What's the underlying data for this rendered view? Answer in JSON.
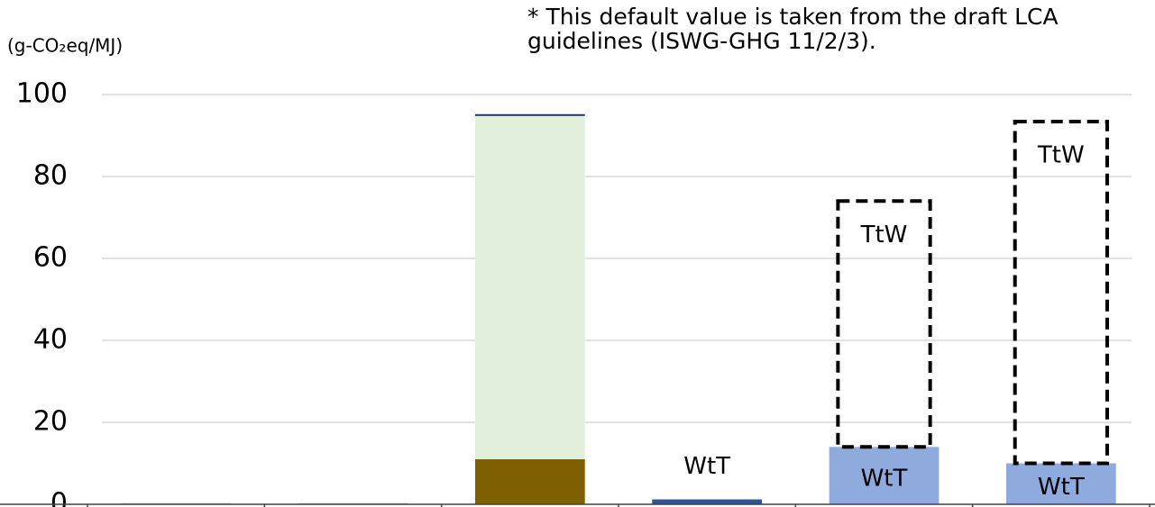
{
  "chart_data": {
    "type": "stacked_bar",
    "unit_label": "(g-CO₂eq/MJ)",
    "note": [
      "* This default value is taken from the draft LCA",
      "guidelines (ISWG-GHG 11/2/3)."
    ],
    "categories": [
      null,
      null,
      null,
      null,
      null,
      null
    ],
    "series": [
      {
        "name": "WtT",
        "values": [
          0.3,
          0.3,
          11,
          1.2,
          14,
          10
        ],
        "colors": [
          "#bfbfbf",
          "#bfbfbf",
          "#7f6000",
          "#2f5597",
          "#8faadc",
          "#8faadc"
        ],
        "annotated": [
          false,
          false,
          false,
          true,
          true,
          true
        ]
      },
      {
        "name": "TtW",
        "values": [
          null,
          null,
          84,
          null,
          60,
          83.4
        ],
        "colors": [
          null,
          null,
          "#e2efda",
          null,
          "none",
          "none"
        ],
        "styles": [
          null,
          null,
          "solid",
          null,
          "dashed",
          "dashed"
        ],
        "annotated": [
          false,
          false,
          false,
          false,
          true,
          true
        ]
      }
    ],
    "ylim": [
      0,
      100
    ],
    "yticks": [
      0,
      20,
      40,
      60,
      80,
      100
    ],
    "grid": true
  }
}
